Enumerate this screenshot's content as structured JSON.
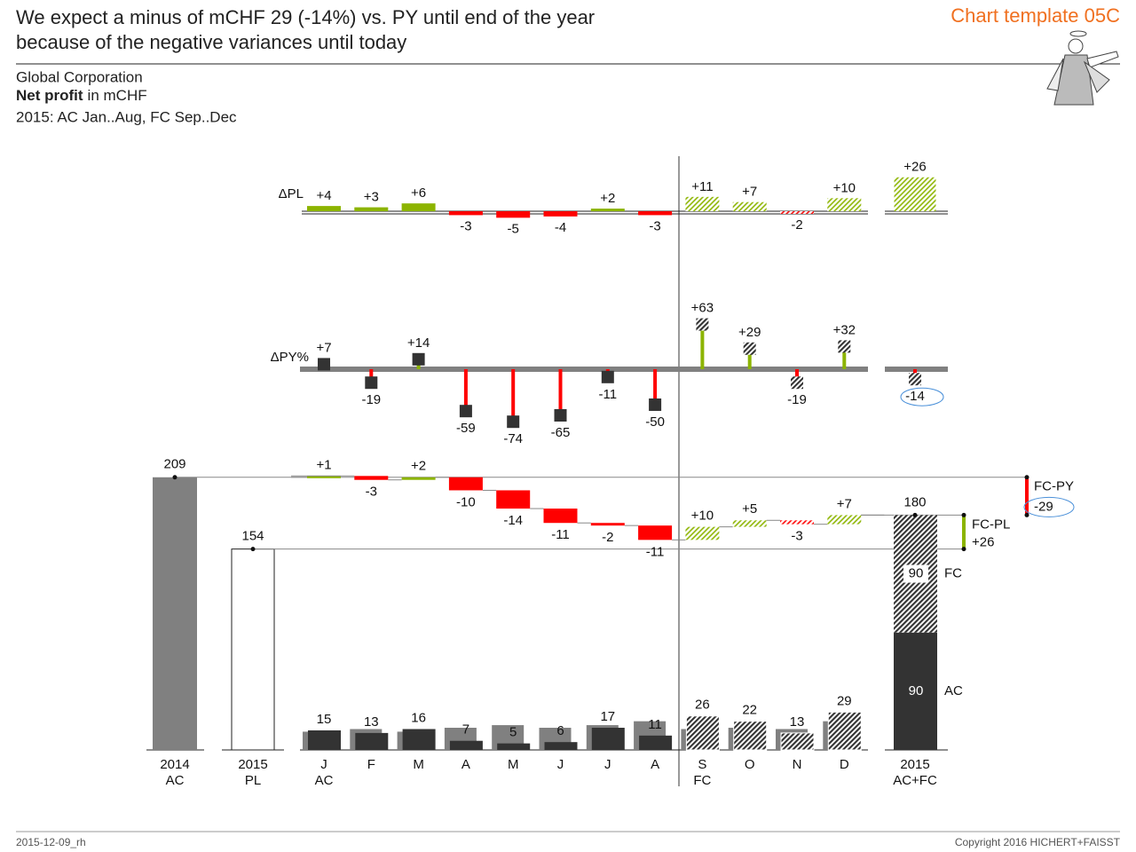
{
  "header": {
    "title_lines": [
      "We expect a minus of mCHF 29 (-14%) vs. PY until end of the year",
      "because of the negative variances until today"
    ],
    "template": "Chart template 05C",
    "company": "Global Corporation",
    "measure": "Net profit",
    "unit": "in mCHF",
    "period": "2015: AC Jan..Aug, FC Sep..Dec"
  },
  "footer": {
    "date": "2015-12-09_rh",
    "copyright": "Copyright 2016 HICHERT+FAISST"
  },
  "chart_data": [
    {
      "type": "variance_bar",
      "label": "ΔPL",
      "values": [
        4,
        3,
        6,
        -3,
        -5,
        -4,
        2,
        -3,
        11,
        7,
        -2,
        10
      ],
      "value_labels": [
        "+4",
        "+3",
        "+6",
        "-3",
        "-5",
        "-4",
        "+2",
        "-3",
        "+11",
        "+7",
        "-2",
        "+10"
      ],
      "total": 26,
      "total_label": "+26"
    },
    {
      "type": "variance_pin",
      "label": "ΔPY%",
      "values": [
        7,
        -19,
        14,
        -59,
        -74,
        -65,
        -11,
        -50,
        63,
        29,
        -19,
        32
      ],
      "value_labels": [
        "+7",
        "-19",
        "+14",
        "-59",
        "-74",
        "-65",
        "-11",
        "-50",
        "+63",
        "+29",
        "-19",
        "+32"
      ],
      "total": -14,
      "highlight_total": true
    },
    {
      "type": "ibcs_waterfall",
      "categories": [
        "J",
        "F",
        "M",
        "A",
        "M",
        "J",
        "J",
        "A",
        "S",
        "O",
        "N",
        "D"
      ],
      "series": [
        {
          "name": "AC",
          "color": "#333333",
          "values": [
            15,
            13,
            16,
            7,
            5,
            6,
            17,
            11,
            null,
            null,
            null,
            null
          ]
        },
        {
          "name": "FC",
          "color": "#333333",
          "hatched": true,
          "values": [
            null,
            null,
            null,
            null,
            null,
            null,
            null,
            null,
            26,
            22,
            13,
            29
          ]
        }
      ],
      "previous_year": [
        14,
        16,
        14,
        17,
        19,
        17,
        19,
        22,
        16,
        17,
        16,
        22
      ],
      "previous_year_color": "#808080",
      "variance_py": [
        1,
        -3,
        2,
        -10,
        -14,
        -11,
        -2,
        -11,
        10,
        5,
        -3,
        7
      ],
      "variance_py_labels": [
        "+1",
        "-3",
        "+2",
        "-10",
        "-14",
        "-11",
        "-2",
        "-11",
        "+10",
        "+5",
        "-3",
        "+7"
      ],
      "start": {
        "label": [
          "2014",
          "AC"
        ],
        "value": 209,
        "color": "#808080"
      },
      "plan": {
        "label": [
          "2015",
          "PL"
        ],
        "value": 154
      },
      "end": {
        "label": [
          "2015",
          "AC+FC"
        ],
        "value": 180,
        "parts": [
          {
            "name": "AC",
            "value": 90
          },
          {
            "name": "FC",
            "value": 90
          }
        ]
      },
      "fc_py": {
        "label": "FC-PY",
        "value": -29,
        "highlight": true
      },
      "fc_pl": {
        "label": "FC-PL",
        "value": 26,
        "value_label": "+26"
      },
      "positive_color": "#8cb400",
      "negative_color": "#ff0000"
    }
  ]
}
